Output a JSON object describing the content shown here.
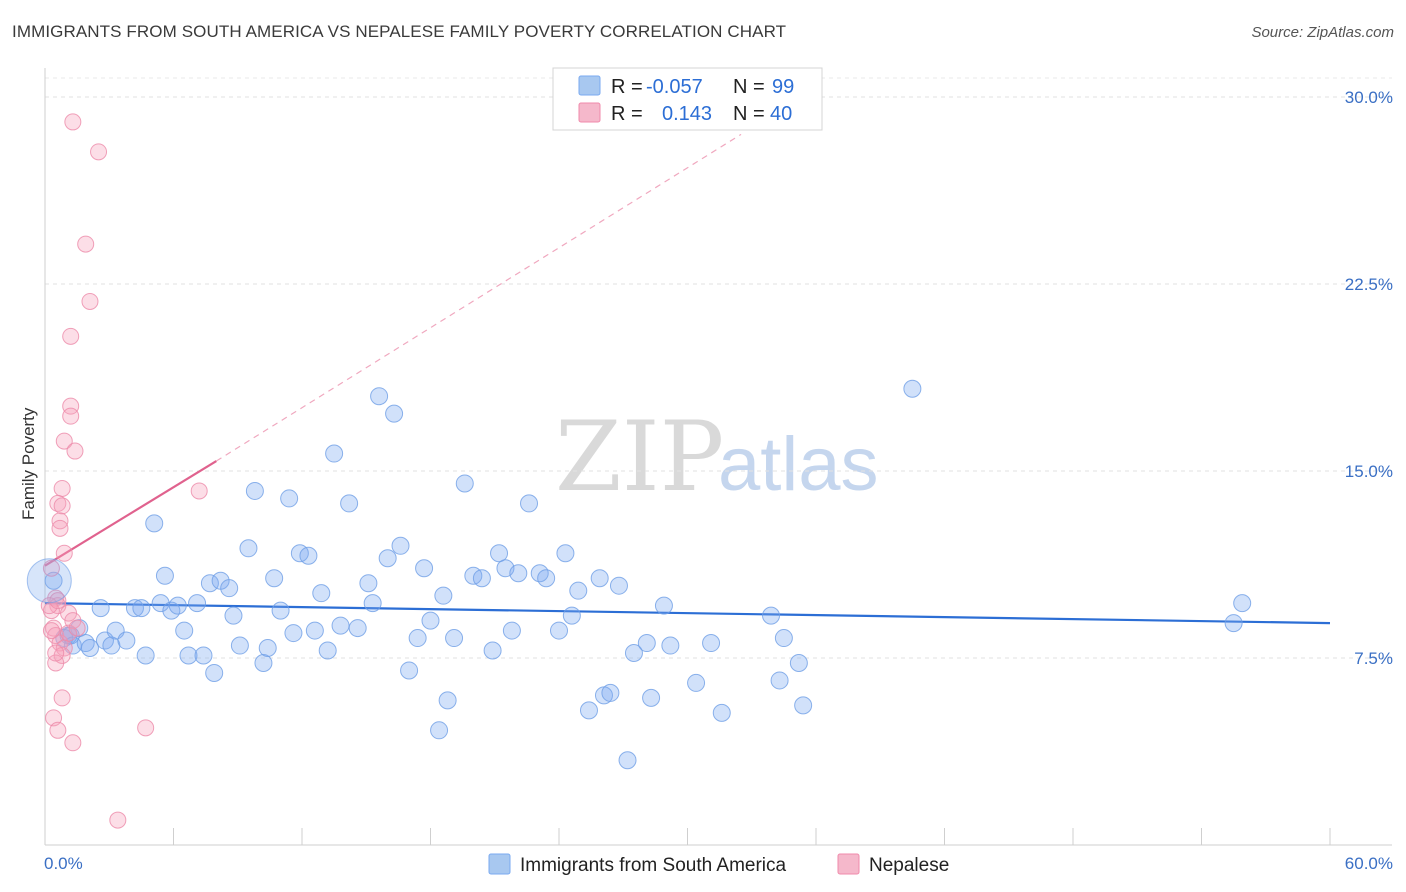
{
  "header": {
    "title": "IMMIGRANTS FROM SOUTH AMERICA VS NEPALESE FAMILY POVERTY CORRELATION CHART",
    "source": "Source: ZipAtlas.com"
  },
  "legend": {
    "rows": [
      {
        "r_label": "R =",
        "r_value": "-0.057",
        "n_label": "N =",
        "n_value": "99",
        "color": "#a8c8f0"
      },
      {
        "r_label": "R =",
        "r_value": "0.143",
        "n_label": "N =",
        "n_value": "40",
        "color": "#f5b8cb"
      }
    ]
  },
  "watermark": {
    "zip": "ZIP",
    "atlas": "atlas"
  },
  "chart_data": {
    "type": "scatter",
    "ylabel": "Family Poverty",
    "xlim": [
      0,
      60
    ],
    "ylim": [
      0,
      30
    ],
    "x_tick_labels": [
      "0.0%",
      "60.0%"
    ],
    "y_ticks": [
      7.5,
      15.0,
      22.5,
      30.0
    ],
    "y_tick_labels": [
      "7.5%",
      "15.0%",
      "22.5%",
      "30.0%"
    ],
    "grid": true,
    "series": [
      {
        "name": "Immigrants from South America",
        "color": "#7aaaf0",
        "line_color": "#2c6ed5",
        "trend": {
          "x0": 0,
          "y0": 9.7,
          "x1": 60,
          "y1": 8.9
        },
        "points": [
          [
            0.4,
            10.6
          ],
          [
            0.9,
            8.3
          ],
          [
            1.1,
            8.4
          ],
          [
            1.3,
            8.0
          ],
          [
            1.6,
            8.7
          ],
          [
            1.9,
            8.1
          ],
          [
            2.1,
            7.9
          ],
          [
            2.6,
            9.5
          ],
          [
            2.8,
            8.2
          ],
          [
            3.1,
            8.0
          ],
          [
            3.3,
            8.6
          ],
          [
            3.8,
            8.2
          ],
          [
            4.2,
            9.5
          ],
          [
            4.5,
            9.5
          ],
          [
            4.7,
            7.6
          ],
          [
            5.1,
            12.9
          ],
          [
            5.4,
            9.7
          ],
          [
            5.6,
            10.8
          ],
          [
            5.9,
            9.4
          ],
          [
            6.2,
            9.6
          ],
          [
            6.5,
            8.6
          ],
          [
            6.7,
            7.6
          ],
          [
            7.1,
            9.7
          ],
          [
            7.4,
            7.6
          ],
          [
            7.7,
            10.5
          ],
          [
            7.9,
            6.9
          ],
          [
            8.2,
            10.6
          ],
          [
            8.6,
            10.3
          ],
          [
            8.8,
            9.2
          ],
          [
            9.1,
            8.0
          ],
          [
            9.5,
            11.9
          ],
          [
            9.8,
            14.2
          ],
          [
            10.2,
            7.3
          ],
          [
            10.4,
            7.9
          ],
          [
            10.7,
            10.7
          ],
          [
            11.0,
            9.4
          ],
          [
            11.4,
            13.9
          ],
          [
            11.6,
            8.5
          ],
          [
            11.9,
            11.7
          ],
          [
            12.3,
            11.6
          ],
          [
            12.6,
            8.6
          ],
          [
            12.9,
            10.1
          ],
          [
            13.2,
            7.8
          ],
          [
            13.5,
            15.7
          ],
          [
            13.8,
            8.8
          ],
          [
            14.2,
            13.7
          ],
          [
            14.6,
            8.7
          ],
          [
            15.1,
            10.5
          ],
          [
            15.3,
            9.7
          ],
          [
            15.6,
            18.0
          ],
          [
            16.0,
            11.5
          ],
          [
            16.3,
            17.3
          ],
          [
            16.6,
            12.0
          ],
          [
            17.0,
            7.0
          ],
          [
            17.4,
            8.3
          ],
          [
            17.7,
            11.1
          ],
          [
            18.0,
            9.0
          ],
          [
            18.4,
            4.6
          ],
          [
            18.6,
            10.0
          ],
          [
            18.8,
            5.8
          ],
          [
            19.1,
            8.3
          ],
          [
            19.6,
            14.5
          ],
          [
            20.0,
            10.8
          ],
          [
            20.4,
            10.7
          ],
          [
            20.9,
            7.8
          ],
          [
            21.2,
            11.7
          ],
          [
            21.5,
            11.1
          ],
          [
            21.8,
            8.6
          ],
          [
            22.1,
            10.9
          ],
          [
            22.6,
            13.7
          ],
          [
            23.1,
            10.9
          ],
          [
            23.4,
            10.7
          ],
          [
            24.0,
            8.6
          ],
          [
            24.3,
            11.7
          ],
          [
            24.6,
            9.2
          ],
          [
            24.9,
            10.2
          ],
          [
            25.4,
            5.4
          ],
          [
            25.9,
            10.7
          ],
          [
            26.1,
            6.0
          ],
          [
            26.4,
            6.1
          ],
          [
            26.8,
            10.4
          ],
          [
            27.2,
            3.4
          ],
          [
            27.5,
            7.7
          ],
          [
            28.1,
            8.1
          ],
          [
            28.3,
            5.9
          ],
          [
            28.9,
            9.6
          ],
          [
            29.2,
            8.0
          ],
          [
            30.4,
            6.5
          ],
          [
            31.1,
            8.1
          ],
          [
            31.6,
            5.3
          ],
          [
            33.9,
            9.2
          ],
          [
            34.3,
            6.6
          ],
          [
            34.5,
            8.3
          ],
          [
            35.2,
            7.3
          ],
          [
            35.4,
            5.6
          ],
          [
            40.5,
            18.3
          ],
          [
            55.5,
            8.9
          ],
          [
            55.9,
            9.7
          ],
          [
            1.2,
            8.4
          ]
        ]
      },
      {
        "name": "Nepalese",
        "color": "#f5a0ba",
        "line_color": "#e0628e",
        "trend": {
          "x0": 0,
          "y0": 11.2,
          "x1": 8.0,
          "y1": 15.4
        },
        "trend_ext": {
          "x0": 8.0,
          "y0": 15.4,
          "x1": 32.5,
          "y1": 28.5
        },
        "points": [
          [
            1.3,
            29.0
          ],
          [
            2.5,
            27.8
          ],
          [
            1.9,
            24.1
          ],
          [
            2.1,
            21.8
          ],
          [
            1.2,
            20.4
          ],
          [
            1.2,
            17.6
          ],
          [
            1.2,
            17.2
          ],
          [
            0.9,
            16.2
          ],
          [
            1.4,
            15.8
          ],
          [
            0.8,
            14.3
          ],
          [
            0.6,
            13.7
          ],
          [
            0.8,
            13.6
          ],
          [
            0.7,
            13.0
          ],
          [
            0.7,
            12.7
          ],
          [
            0.9,
            11.7
          ],
          [
            0.5,
            9.9
          ],
          [
            0.6,
            9.6
          ],
          [
            0.3,
            9.4
          ],
          [
            1.1,
            9.3
          ],
          [
            1.3,
            9.0
          ],
          [
            0.4,
            8.7
          ],
          [
            0.5,
            8.4
          ],
          [
            0.7,
            8.1
          ],
          [
            0.9,
            7.9
          ],
          [
            0.8,
            7.6
          ],
          [
            0.5,
            7.3
          ],
          [
            0.8,
            5.9
          ],
          [
            0.4,
            5.1
          ],
          [
            0.6,
            4.6
          ],
          [
            1.3,
            4.1
          ],
          [
            4.7,
            4.7
          ],
          [
            3.4,
            1.0
          ],
          [
            7.2,
            14.2
          ],
          [
            0.3,
            8.6
          ],
          [
            1.1,
            8.5
          ],
          [
            0.5,
            7.7
          ],
          [
            0.2,
            9.6
          ],
          [
            0.3,
            11.1
          ],
          [
            1.5,
            8.7
          ],
          [
            0.6,
            9.8
          ]
        ]
      }
    ]
  },
  "bottom_legend": [
    {
      "label": "Immigrants from South America",
      "color": "#a8c8f0"
    },
    {
      "label": "Nepalese",
      "color": "#f5b8cb"
    }
  ]
}
